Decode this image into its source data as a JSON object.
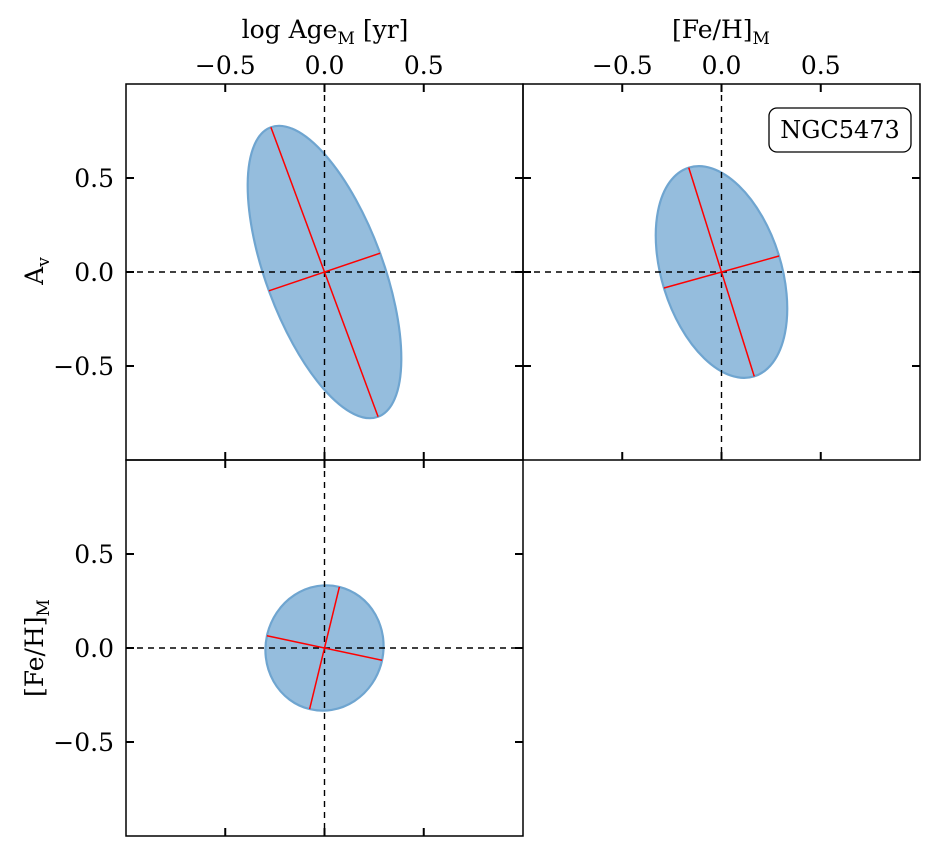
{
  "figure": {
    "object_label": "NGC5473",
    "colors": {
      "ellipse_fill": "#95bddd",
      "ellipse_edge": "#6fa5d0",
      "axis_line": "#ff0000",
      "crosshair": "#000000"
    }
  },
  "labels": {
    "top_left_xlabel_main": "log Age",
    "top_left_xlabel_sub": "M",
    "top_left_xlabel_tail": " [yr]",
    "top_right_xlabel_main": "[Fe/H]",
    "top_right_xlabel_sub": "M",
    "row1_ylabel_main": "A",
    "row1_ylabel_sub": "v",
    "row2_ylabel_main": "[Fe/H]",
    "row2_ylabel_sub": "M"
  },
  "chart_data": [
    {
      "type": "ellipse",
      "id": "age-vs-av",
      "x_param": "log Age_M [yr]",
      "y_param": "A_v",
      "xlim": [
        -1.0,
        1.0
      ],
      "ylim": [
        -1.0,
        1.0
      ],
      "xticks": [
        -0.5,
        0.0,
        0.5
      ],
      "yticks": [
        -0.5,
        0.0,
        0.5
      ],
      "xtick_labels": [
        "−0.5",
        "0.0",
        "0.5"
      ],
      "ytick_labels": [
        "−0.5",
        "0.0",
        "0.5"
      ],
      "show_top_ticklabels": true,
      "show_left_ticklabels": true,
      "center": [
        0.0,
        0.0
      ],
      "major_axis_endpoint": [
        -0.27,
        0.77
      ],
      "minor_axis_endpoint": [
        0.28,
        0.1
      ]
    },
    {
      "type": "ellipse",
      "id": "feh-vs-av",
      "x_param": "[Fe/H]_M",
      "y_param": "A_v",
      "xlim": [
        -1.0,
        1.0
      ],
      "ylim": [
        -1.0,
        1.0
      ],
      "xticks": [
        -0.5,
        0.0,
        0.5
      ],
      "yticks": [
        -0.5,
        0.0,
        0.5
      ],
      "xtick_labels": [
        "−0.5",
        "0.0",
        "0.5"
      ],
      "ytick_labels": [],
      "show_top_ticklabels": true,
      "show_left_ticklabels": false,
      "center": [
        0.0,
        0.0
      ],
      "major_axis_endpoint": [
        -0.165,
        0.555
      ],
      "minor_axis_endpoint": [
        0.29,
        0.085
      ]
    },
    {
      "type": "ellipse",
      "id": "age-vs-feh",
      "x_param": "log Age_M [yr]",
      "y_param": "[Fe/H]_M",
      "xlim": [
        -1.0,
        1.0
      ],
      "ylim": [
        -1.0,
        1.0
      ],
      "xticks": [
        -0.5,
        0.0,
        0.5
      ],
      "yticks": [
        -0.5,
        0.0,
        0.5
      ],
      "xtick_labels": [],
      "ytick_labels": [
        "−0.5",
        "0.0",
        "0.5"
      ],
      "show_top_ticklabels": false,
      "show_left_ticklabels": true,
      "center": [
        0.0,
        0.0
      ],
      "major_axis_endpoint": [
        0.075,
        0.325
      ],
      "minor_axis_endpoint": [
        0.29,
        -0.065
      ]
    }
  ]
}
